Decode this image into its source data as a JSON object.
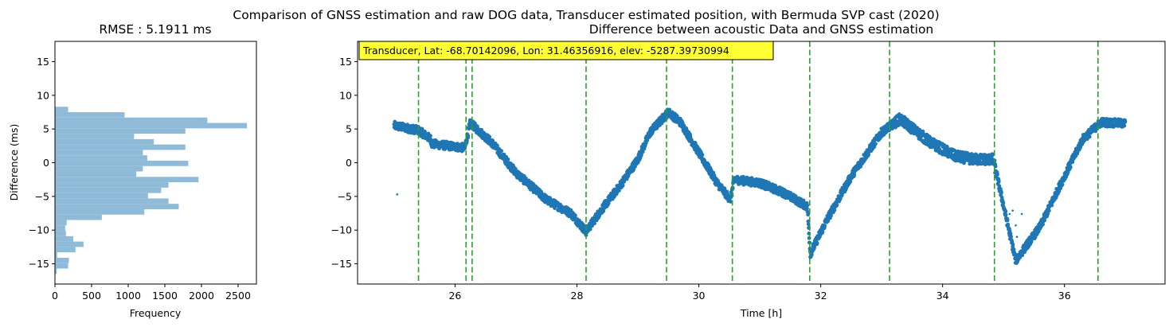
{
  "figure": {
    "suptitle": "Comparison of GNSS estimation and raw DOG data, Transducer estimated position, with Bermuda SVP cast (2020)"
  },
  "colors": {
    "histogram": "#8fbbd9",
    "scatter": "#1f77b4",
    "vlines": "#2ca02c",
    "annotation_bg": "#ffff33"
  },
  "chart_data": [
    {
      "type": "bar",
      "orientation": "horizontal",
      "title": "RMSE : 5.1911 ms",
      "xlabel": "Frequency",
      "ylabel": "Difference (ms)",
      "xlim": [
        0,
        2750
      ],
      "ylim": [
        -18,
        18
      ],
      "xticks": [
        "0",
        "500",
        "1000",
        "1500",
        "2000",
        "2500"
      ],
      "yticks": [
        "−15",
        "−10",
        "−5",
        "0",
        "5",
        "10",
        "15"
      ],
      "bins": [
        {
          "from": 7.5,
          "to": 8.3,
          "value": 180
        },
        {
          "from": 6.7,
          "to": 7.5,
          "value": 950
        },
        {
          "from": 5.9,
          "to": 6.7,
          "value": 2080
        },
        {
          "from": 5.1,
          "to": 5.9,
          "value": 2620
        },
        {
          "from": 4.3,
          "to": 5.1,
          "value": 1780
        },
        {
          "from": 3.5,
          "to": 4.3,
          "value": 1080
        },
        {
          "from": 2.7,
          "to": 3.5,
          "value": 1350
        },
        {
          "from": 1.9,
          "to": 2.7,
          "value": 1780
        },
        {
          "from": 1.1,
          "to": 1.9,
          "value": 1200
        },
        {
          "from": 0.3,
          "to": 1.1,
          "value": 1260
        },
        {
          "from": -0.5,
          "to": 0.3,
          "value": 1820
        },
        {
          "from": -1.3,
          "to": -0.5,
          "value": 1200
        },
        {
          "from": -2.1,
          "to": -1.3,
          "value": 1110
        },
        {
          "from": -2.9,
          "to": -2.1,
          "value": 1960
        },
        {
          "from": -3.7,
          "to": -2.9,
          "value": 1550
        },
        {
          "from": -4.5,
          "to": -3.7,
          "value": 1450
        },
        {
          "from": -5.3,
          "to": -4.5,
          "value": 1270
        },
        {
          "from": -6.1,
          "to": -5.3,
          "value": 1550
        },
        {
          "from": -6.9,
          "to": -6.1,
          "value": 1690
        },
        {
          "from": -7.7,
          "to": -6.9,
          "value": 1220
        },
        {
          "from": -8.5,
          "to": -7.7,
          "value": 640
        },
        {
          "from": -9.3,
          "to": -8.5,
          "value": 160
        },
        {
          "from": -10.1,
          "to": -9.3,
          "value": 140
        },
        {
          "from": -10.9,
          "to": -10.1,
          "value": 150
        },
        {
          "from": -11.7,
          "to": -10.9,
          "value": 250
        },
        {
          "from": -12.5,
          "to": -11.7,
          "value": 390
        },
        {
          "from": -13.3,
          "to": -12.5,
          "value": 280
        },
        {
          "from": -14.1,
          "to": -13.3,
          "value": 30
        },
        {
          "from": -14.9,
          "to": -14.1,
          "value": 190
        },
        {
          "from": -15.7,
          "to": -14.9,
          "value": 180
        },
        {
          "from": -16.5,
          "to": -15.7,
          "value": 25
        }
      ]
    },
    {
      "type": "scatter",
      "title": "Difference between acoustic Data and GNSS estimation",
      "xlabel": "Time [h]",
      "ylabel": "",
      "xlim": [
        24.4,
        37.65
      ],
      "ylim": [
        -18,
        18
      ],
      "xticks": [
        "26",
        "28",
        "30",
        "32",
        "34",
        "36"
      ],
      "yticks": [
        "−15",
        "−10",
        "−5",
        "0",
        "5",
        "10",
        "15"
      ],
      "annotation": "Transducer, Lat: -68.70142096, Lon: 31.46356916, elev: -5287.39730994",
      "vlines": [
        25.4,
        26.18,
        26.28,
        28.15,
        29.47,
        30.55,
        31.82,
        33.13,
        34.85,
        36.55
      ],
      "trend": [
        [
          25.0,
          5.5
        ],
        [
          25.4,
          4.8
        ],
        [
          25.6,
          3.5
        ],
        [
          25.62,
          2.8
        ],
        [
          26.16,
          2.2
        ],
        [
          26.25,
          5.9
        ],
        [
          26.6,
          3.0
        ],
        [
          27.0,
          -1.5
        ],
        [
          27.5,
          -5.5
        ],
        [
          27.9,
          -7.5
        ],
        [
          28.15,
          -10.2
        ],
        [
          28.4,
          -7.0
        ],
        [
          28.7,
          -3.5
        ],
        [
          29.0,
          0.5
        ],
        [
          29.2,
          4.5
        ],
        [
          29.5,
          7.5
        ],
        [
          29.7,
          6.0
        ],
        [
          30.0,
          1.5
        ],
        [
          30.3,
          -3.0
        ],
        [
          30.52,
          -5.5
        ],
        [
          30.58,
          -2.5
        ],
        [
          31.0,
          -3.0
        ],
        [
          31.4,
          -4.5
        ],
        [
          31.78,
          -6.5
        ],
        [
          31.83,
          -13.5
        ],
        [
          32.1,
          -8.5
        ],
        [
          32.5,
          -2.0
        ],
        [
          33.0,
          4.5
        ],
        [
          33.3,
          6.5
        ],
        [
          33.8,
          3.0
        ],
        [
          34.2,
          1.0
        ],
        [
          34.5,
          0.5
        ],
        [
          34.83,
          0.5
        ],
        [
          35.2,
          -14.5
        ],
        [
          35.6,
          -9.5
        ],
        [
          36.0,
          -2.0
        ],
        [
          36.3,
          3.5
        ],
        [
          36.6,
          6.0
        ],
        [
          37.0,
          5.8
        ]
      ],
      "gaps": [
        [
          25.62,
          0.6
        ],
        [
          26.16,
          0.4
        ],
        [
          28.12,
          0.5
        ],
        [
          28.4,
          0.4
        ],
        [
          29.0,
          0.3
        ],
        [
          34.83,
          1.0
        ]
      ],
      "outliers": [
        [
          25.05,
          -4.7
        ],
        [
          28.05,
          -9.8
        ],
        [
          28.1,
          -10.4
        ],
        [
          35.02,
          -7.3
        ],
        [
          35.1,
          -7.6
        ],
        [
          35.15,
          -7.1
        ],
        [
          35.2,
          -9.3
        ],
        [
          35.22,
          -11.0
        ],
        [
          35.3,
          -7.6
        ]
      ]
    }
  ]
}
